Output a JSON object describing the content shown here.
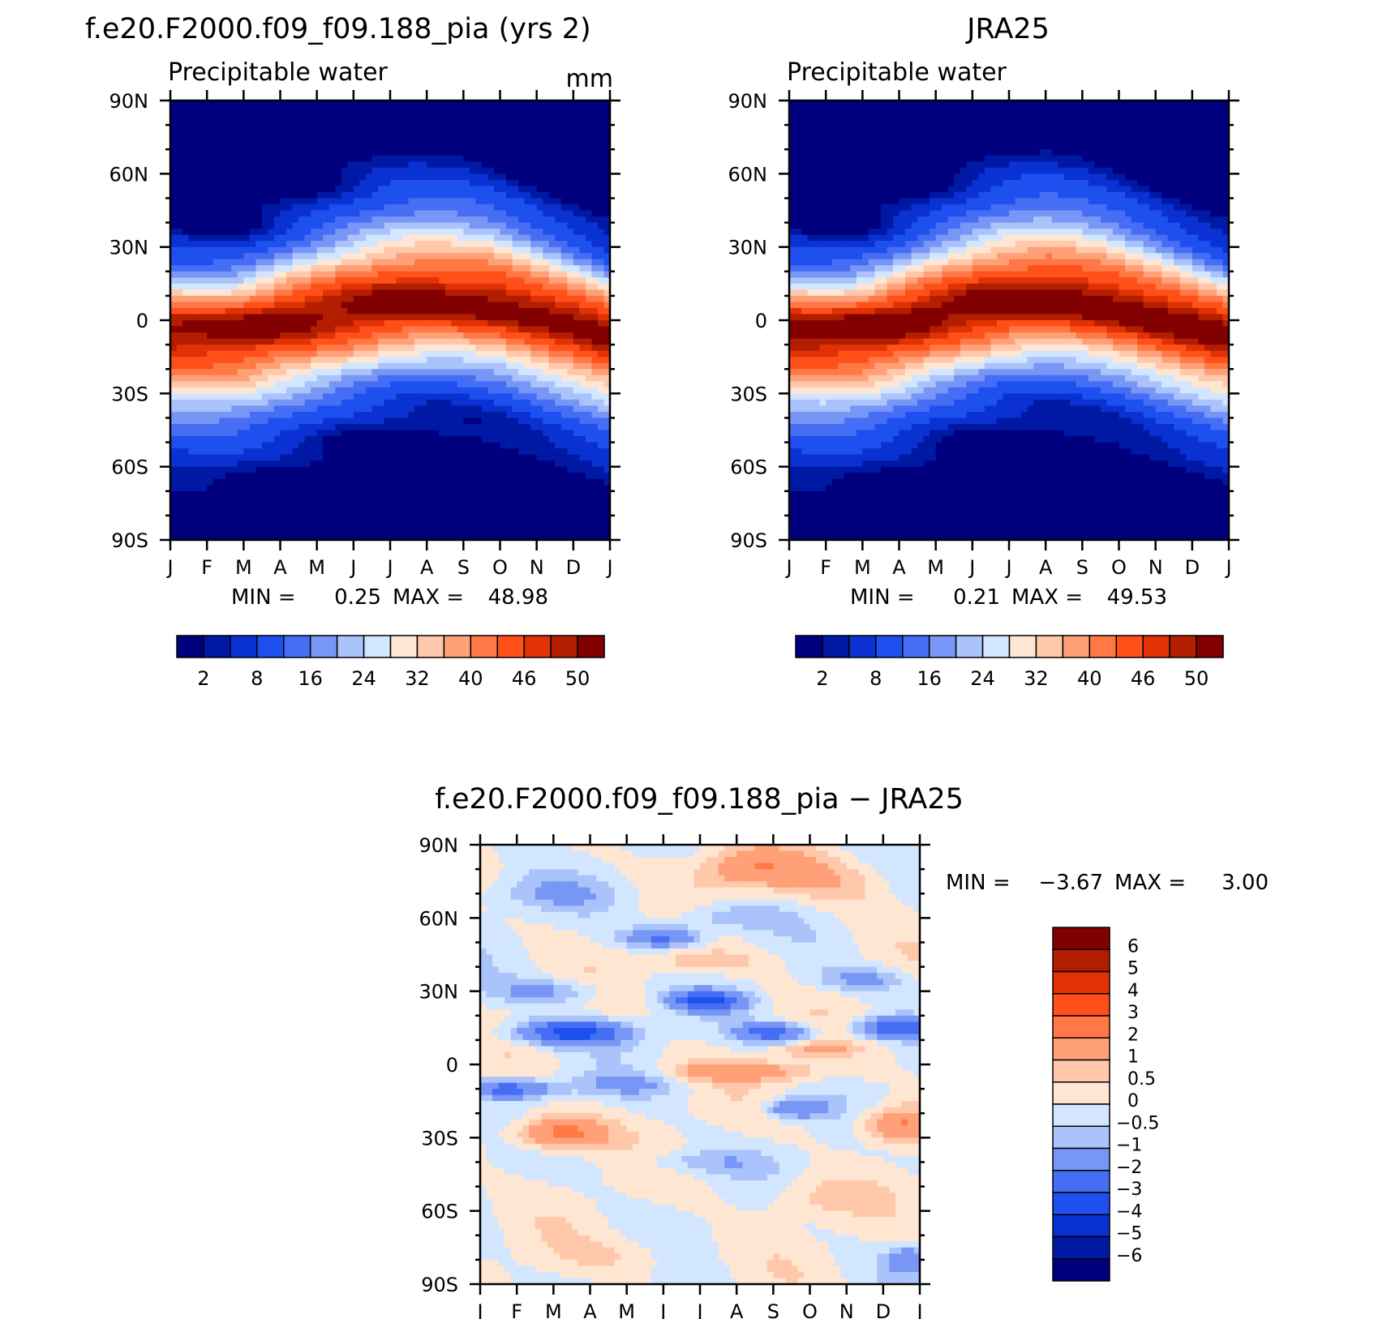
{
  "colors": {
    "absolute_scale": [
      "#00007f",
      "#0019a5",
      "#0a32d2",
      "#1e50f0",
      "#466ef5",
      "#7896f5",
      "#aac3fa",
      "#d2e6ff",
      "#ffe6d2",
      "#ffc8aa",
      "#ffa078",
      "#ff7846",
      "#ff5019",
      "#e13205",
      "#b41e00",
      "#820000"
    ],
    "difference_scale": [
      "#00007f",
      "#0019a5",
      "#0a32d2",
      "#1e50f0",
      "#466ef5",
      "#7896f5",
      "#aac3fa",
      "#d2e6ff",
      "#ffe6d2",
      "#ffc8aa",
      "#ffa078",
      "#ff7846",
      "#ff5019",
      "#e13205",
      "#b41e00",
      "#820000"
    ]
  },
  "chart_data": [
    {
      "id": "model",
      "type": "heatmap",
      "title": "f.e20.F2000.f09_f09.188_pia (yrs 2)",
      "subtitle": "Precipitable water",
      "units": "mm",
      "x_ticks": [
        "J",
        "F",
        "M",
        "A",
        "M",
        "J",
        "J",
        "A",
        "S",
        "O",
        "N",
        "D",
        "J"
      ],
      "y_ticks": [
        "90N",
        "60N",
        "30N",
        "0",
        "30S",
        "60S",
        "90S"
      ],
      "stats": {
        "min_label": "MIN =",
        "min": "0.25",
        "max_label": "MAX =",
        "max": "48.98"
      },
      "colorbar_labels": [
        "2",
        "8",
        "16",
        "24",
        "32",
        "40",
        "46",
        "50"
      ],
      "field_peak": 48.98,
      "field_peak_lat_by_month": [
        -4,
        -4,
        -3,
        0,
        2,
        4,
        6,
        7,
        7,
        6,
        3,
        0,
        -4
      ]
    },
    {
      "id": "obs",
      "type": "heatmap",
      "title": "JRA25",
      "subtitle": "Precipitable water",
      "x_ticks": [
        "J",
        "F",
        "M",
        "A",
        "M",
        "J",
        "J",
        "A",
        "S",
        "O",
        "N",
        "D",
        "J"
      ],
      "y_ticks": [
        "90N",
        "60N",
        "30N",
        "0",
        "30S",
        "60S",
        "90S"
      ],
      "stats": {
        "min_label": "MIN =",
        "min": "0.21",
        "max_label": "MAX =",
        "max": "49.53"
      },
      "colorbar_labels": [
        "2",
        "8",
        "16",
        "24",
        "32",
        "40",
        "46",
        "50"
      ],
      "field_peak": 49.53,
      "field_peak_lat_by_month": [
        -4,
        -4,
        -3,
        0,
        3,
        5,
        7,
        8,
        7,
        5,
        2,
        -1,
        -4
      ]
    },
    {
      "id": "diff",
      "type": "heatmap",
      "title": "f.e20.F2000.f09_f09.188_pia - JRA25",
      "x_ticks": [
        "J",
        "F",
        "M",
        "A",
        "M",
        "J",
        "J",
        "A",
        "S",
        "O",
        "N",
        "D",
        "J"
      ],
      "y_ticks": [
        "90N",
        "60N",
        "30N",
        "0",
        "30S",
        "60S",
        "90S"
      ],
      "stats": {
        "min_label": "MIN =",
        "min": "-3.67",
        "max_label": "MAX =",
        "max": "3.00"
      },
      "colorbar_labels": [
        "6",
        "5",
        "4",
        "3",
        "2",
        "1",
        "0.5",
        "0",
        "-0.5",
        "-1",
        "-2",
        "-3",
        "-4",
        "-5",
        "-6"
      ],
      "colorbar_levels": [
        -6,
        -5,
        -4,
        -3,
        -2,
        -1,
        -0.5,
        0,
        0.5,
        1,
        2,
        3,
        4,
        5,
        6
      ],
      "anomalies": [
        {
          "month": 2.2,
          "lat": -28,
          "value": 2.5,
          "spread_month": 1.2,
          "spread_lat": 7
        },
        {
          "month": 11.4,
          "lat": -25,
          "value": 2.2,
          "spread_month": 1.0,
          "spread_lat": 7
        },
        {
          "month": 7.5,
          "lat": 80,
          "value": 1.8,
          "spread_month": 1.5,
          "spread_lat": 8
        },
        {
          "month": 7.2,
          "lat": -3,
          "value": 1.5,
          "spread_month": 2.2,
          "spread_lat": 4
        },
        {
          "month": 9.2,
          "lat": 6,
          "value": 1.2,
          "spread_month": 1.0,
          "spread_lat": 3
        },
        {
          "month": 6.0,
          "lat": 42,
          "value": 0.9,
          "spread_month": 1.6,
          "spread_lat": 5
        },
        {
          "month": 9.8,
          "lat": 75,
          "value": 0.9,
          "spread_month": 1.4,
          "spread_lat": 10
        },
        {
          "month": 9.0,
          "lat": -55,
          "value": 0.7,
          "spread_month": 1.5,
          "spread_lat": 8
        },
        {
          "month": 4.0,
          "lat": -78,
          "value": 0.5,
          "spread_month": 2.0,
          "spread_lat": 8
        },
        {
          "month": 2.5,
          "lat": 13,
          "value": -3.5,
          "spread_month": 1.5,
          "spread_lat": 5
        },
        {
          "month": 6.2,
          "lat": 26,
          "value": -3.2,
          "spread_month": 1.0,
          "spread_lat": 4
        },
        {
          "month": 11.3,
          "lat": 15,
          "value": -3.0,
          "spread_month": 1.0,
          "spread_lat": 4
        },
        {
          "month": 5.0,
          "lat": 52,
          "value": -2.3,
          "spread_month": 1.0,
          "spread_lat": 4
        },
        {
          "month": 8.0,
          "lat": 13,
          "value": -2.6,
          "spread_month": 1.0,
          "spread_lat": 4
        },
        {
          "month": 0.8,
          "lat": -10,
          "value": -2.4,
          "spread_month": 1.2,
          "spread_lat": 4
        },
        {
          "month": 8.6,
          "lat": -18,
          "value": -2.0,
          "spread_month": 0.8,
          "spread_lat": 4
        },
        {
          "month": 11.7,
          "lat": -80,
          "value": -1.6,
          "spread_month": 0.6,
          "spread_lat": 6
        },
        {
          "month": 1.8,
          "lat": 30,
          "value": -1.2,
          "spread_month": 1.5,
          "spread_lat": 5
        },
        {
          "month": 10.5,
          "lat": 35,
          "value": -1.2,
          "spread_month": 1.3,
          "spread_lat": 5
        },
        {
          "month": 4.0,
          "lat": -8,
          "value": -1.0,
          "spread_month": 1.5,
          "spread_lat": 5
        },
        {
          "month": 6.5,
          "lat": 60,
          "value": -0.9,
          "spread_month": 1.5,
          "spread_lat": 6
        },
        {
          "month": 2.0,
          "lat": 70,
          "value": -0.8,
          "spread_month": 2.0,
          "spread_lat": 7
        },
        {
          "month": 6.0,
          "lat": -40,
          "value": -0.8,
          "spread_month": 2.0,
          "spread_lat": 5
        }
      ]
    }
  ]
}
